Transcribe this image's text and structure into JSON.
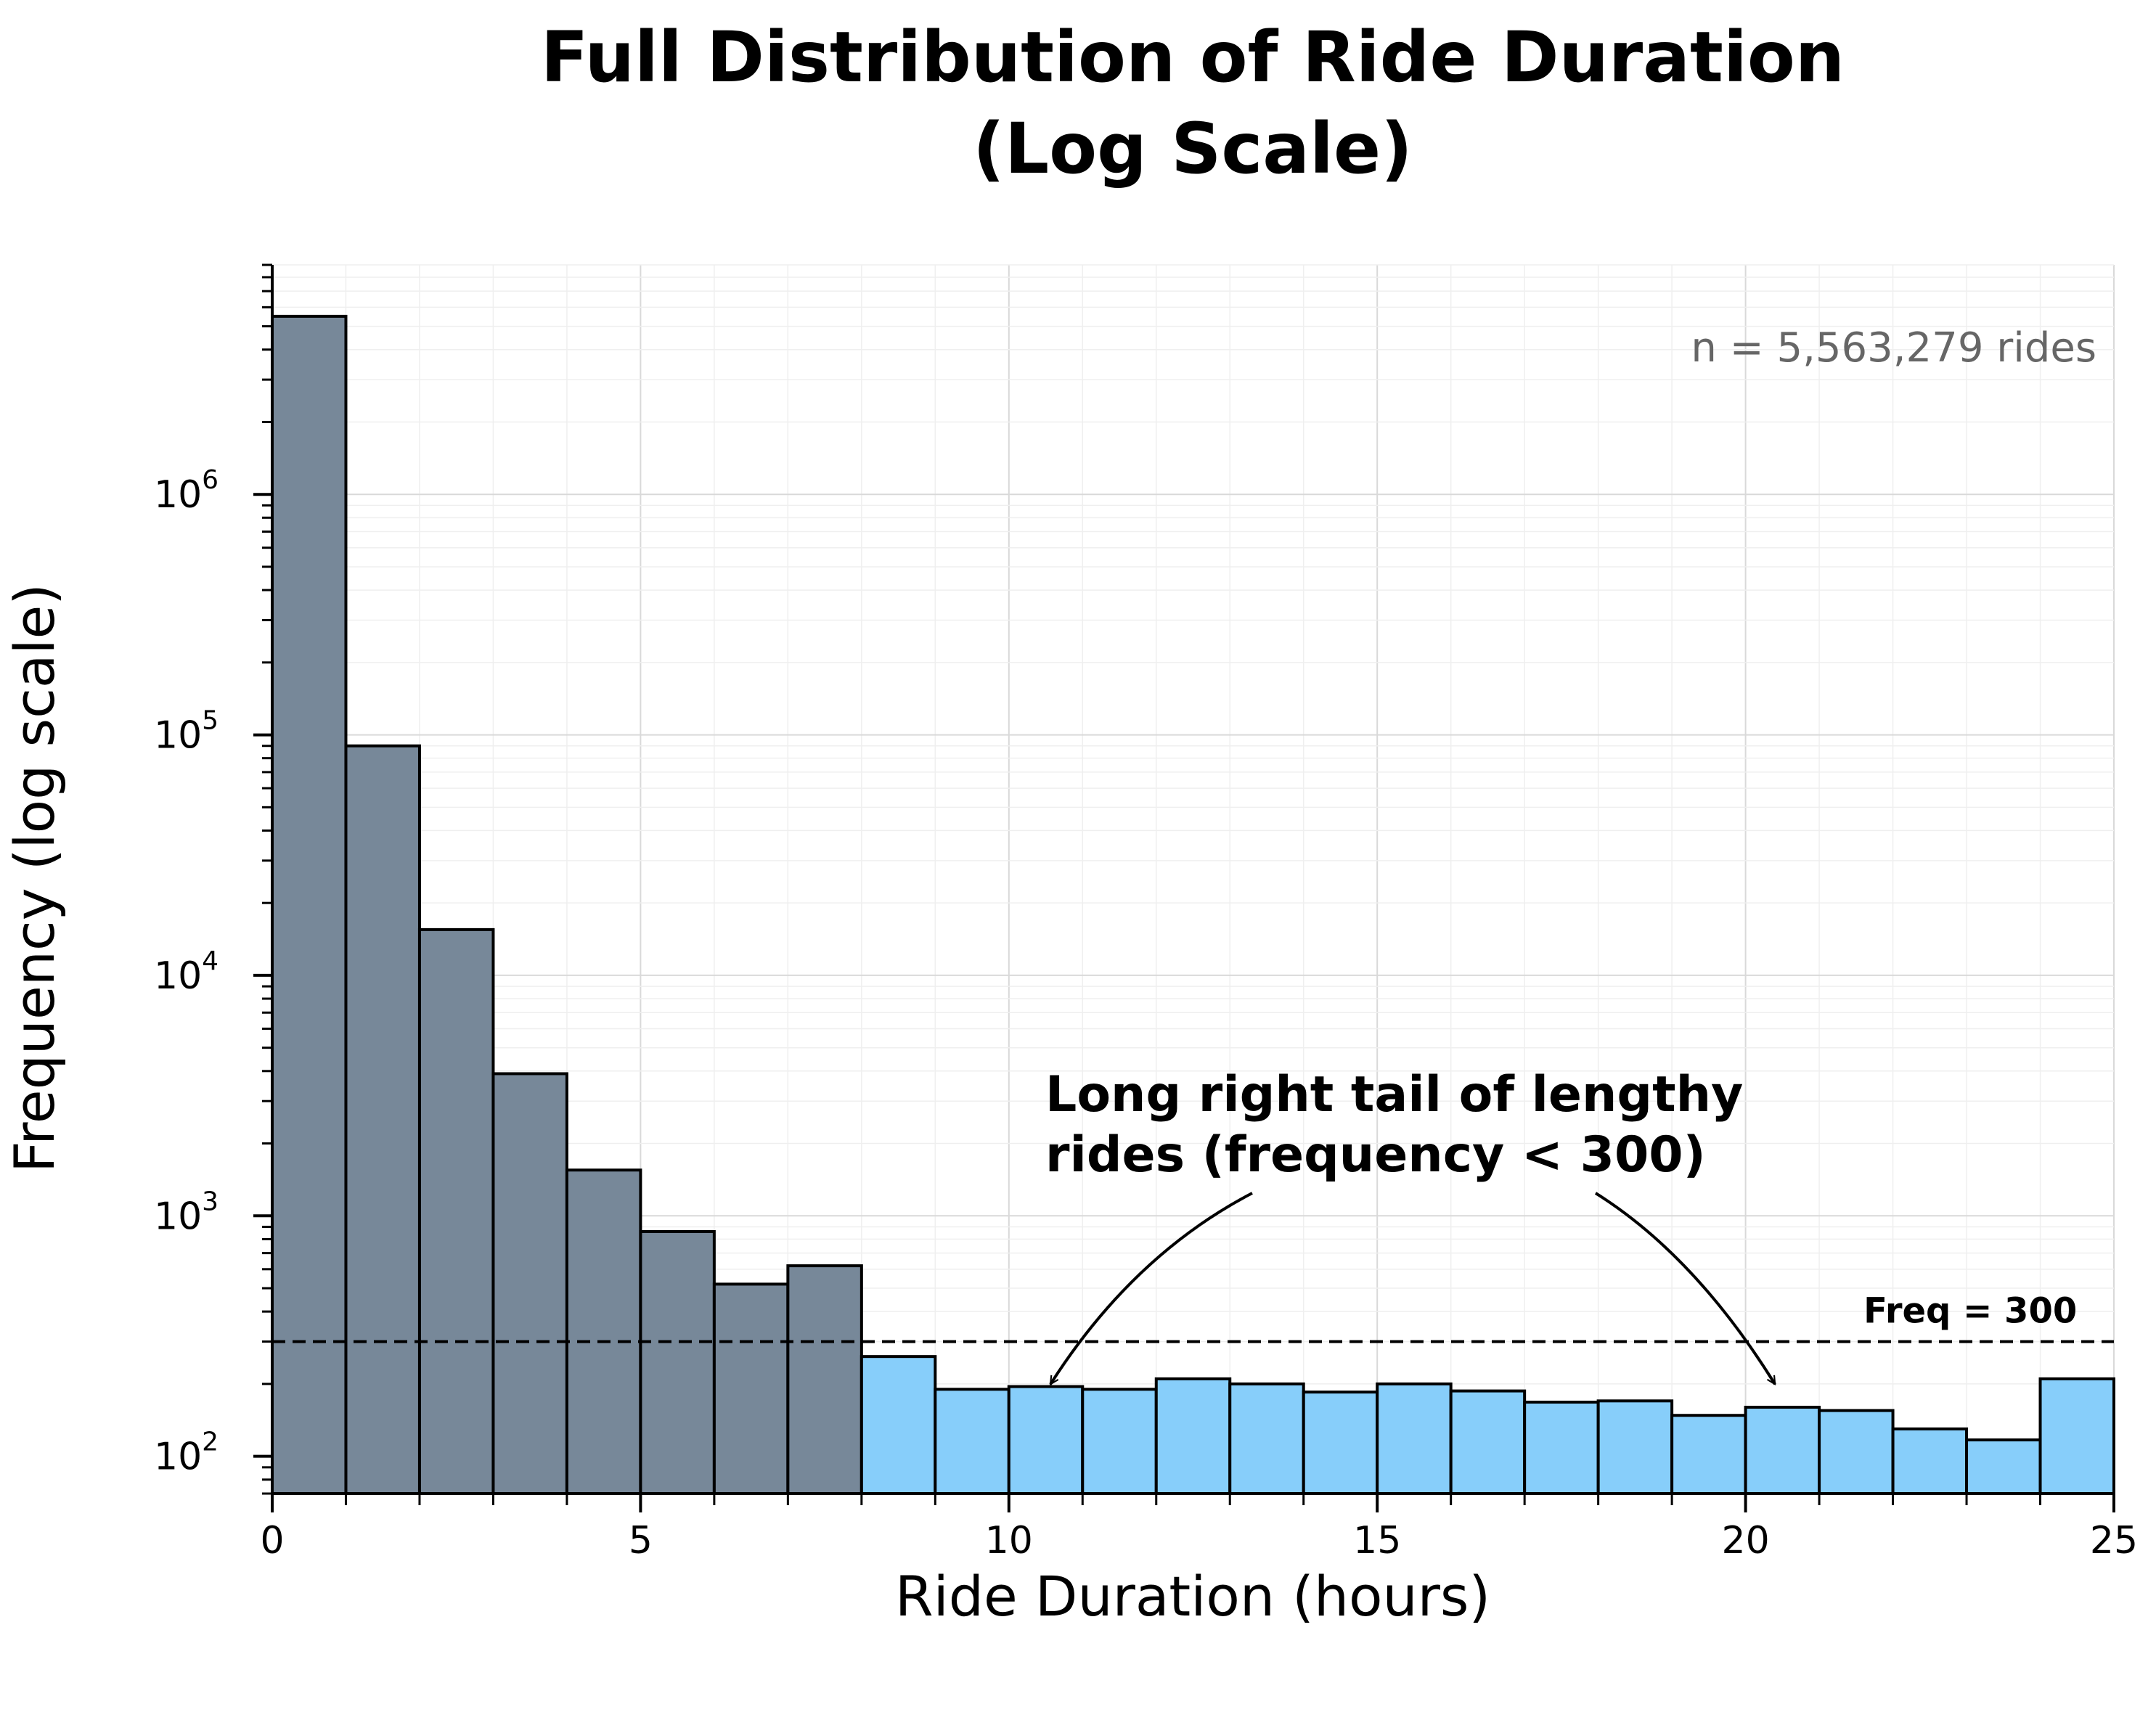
{
  "chart_data": {
    "type": "bar",
    "title_lines": [
      "Full Distribution of Ride Duration",
      "(Log Scale)"
    ],
    "xlabel": "Ride Duration (hours)",
    "ylabel": "Frequency (log scale)",
    "xlim": [
      0,
      25
    ],
    "ylim": [
      70,
      9000000
    ],
    "yscale": "log",
    "grid": true,
    "bin_width_hours": 1,
    "x_ticks": [
      0,
      5,
      10,
      15,
      20,
      25
    ],
    "y_ticks": [
      {
        "value": 100,
        "base": "10",
        "exp": "2"
      },
      {
        "value": 1000,
        "base": "10",
        "exp": "3"
      },
      {
        "value": 10000,
        "base": "10",
        "exp": "4"
      },
      {
        "value": 100000,
        "base": "10",
        "exp": "5"
      },
      {
        "value": 1000000,
        "base": "10",
        "exp": "6"
      }
    ],
    "bins": [
      {
        "start": 0,
        "end": 1,
        "value": 5500000
      },
      {
        "start": 1,
        "end": 2,
        "value": 90000
      },
      {
        "start": 2,
        "end": 3,
        "value": 15500
      },
      {
        "start": 3,
        "end": 4,
        "value": 3900
      },
      {
        "start": 4,
        "end": 5,
        "value": 1550
      },
      {
        "start": 5,
        "end": 6,
        "value": 860
      },
      {
        "start": 6,
        "end": 7,
        "value": 520
      },
      {
        "start": 7,
        "end": 8,
        "value": 620
      },
      {
        "start": 8,
        "end": 9,
        "value": 260
      },
      {
        "start": 9,
        "end": 10,
        "value": 190
      },
      {
        "start": 10,
        "end": 11,
        "value": 195
      },
      {
        "start": 11,
        "end": 12,
        "value": 190
      },
      {
        "start": 12,
        "end": 13,
        "value": 210
      },
      {
        "start": 13,
        "end": 14,
        "value": 200
      },
      {
        "start": 14,
        "end": 15,
        "value": 185
      },
      {
        "start": 15,
        "end": 16,
        "value": 200
      },
      {
        "start": 16,
        "end": 17,
        "value": 187
      },
      {
        "start": 17,
        "end": 18,
        "value": 168
      },
      {
        "start": 18,
        "end": 19,
        "value": 170
      },
      {
        "start": 19,
        "end": 20,
        "value": 148
      },
      {
        "start": 20,
        "end": 21,
        "value": 160
      },
      {
        "start": 21,
        "end": 22,
        "value": 155
      },
      {
        "start": 22,
        "end": 23,
        "value": 130
      },
      {
        "start": 23,
        "end": 24,
        "value": 117
      },
      {
        "start": 24,
        "end": 25,
        "value": 210
      }
    ],
    "threshold": {
      "value": 300,
      "label": "Freq = 300"
    },
    "annotation": {
      "lines": [
        "Long right tail of lengthy",
        "rides (frequency < 300)"
      ],
      "arrow_targets": [
        {
          "x": 10.6,
          "y": 205
        },
        {
          "x": 20.4,
          "y": 205
        }
      ]
    },
    "n_label": "n = 5,563,279 rides",
    "colors": {
      "head_bins": "#778899",
      "tail_bins": "#87CEFA",
      "edge": "#000000",
      "grid": "#e6e6e6",
      "n_label": "#666666"
    }
  }
}
